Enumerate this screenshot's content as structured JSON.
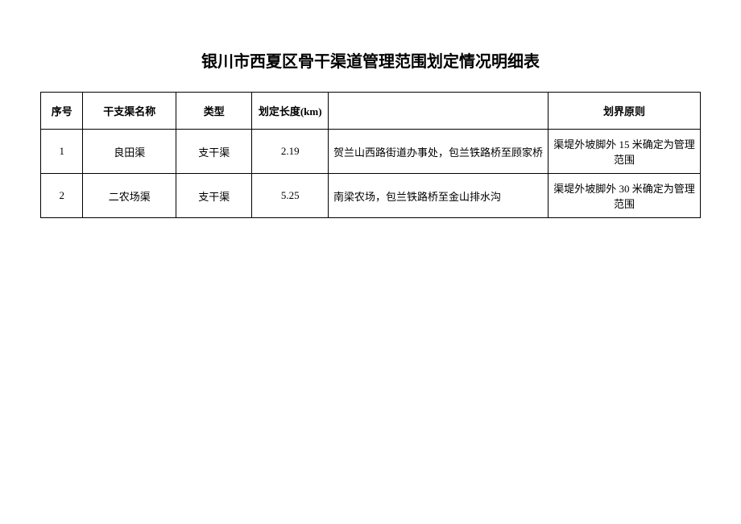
{
  "document": {
    "title": "银川市西夏区骨干渠道管理范围划定情况明细表",
    "table": {
      "columns": [
        {
          "key": "seq",
          "label": "序号"
        },
        {
          "key": "name",
          "label": "干支渠名称"
        },
        {
          "key": "type",
          "label": "类型"
        },
        {
          "key": "length",
          "label": "划定长度(km)"
        },
        {
          "key": "location",
          "label": ""
        },
        {
          "key": "principle",
          "label": "划界原则"
        }
      ],
      "rows": [
        {
          "seq": "1",
          "name": "良田渠",
          "type": "支干渠",
          "length": "2.19",
          "location": "贺兰山西路街道办事处，包兰铁路桥至顾家桥",
          "principle": "渠堤外坡脚外 15 米确定为管理范围"
        },
        {
          "seq": "2",
          "name": "二农场渠",
          "type": "支干渠",
          "length": "5.25",
          "location": "南梁农场，包兰铁路桥至金山排水沟",
          "principle": "渠堤外坡脚外 30 米确定为管理范围"
        }
      ]
    }
  }
}
